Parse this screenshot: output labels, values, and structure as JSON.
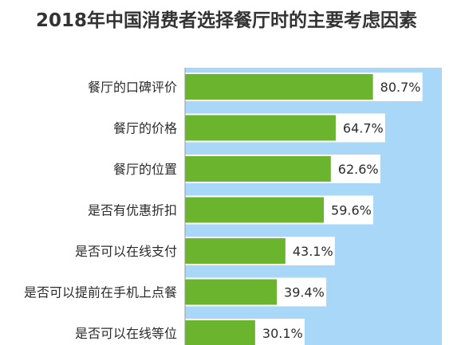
{
  "chart_data": {
    "type": "bar",
    "orientation": "horizontal",
    "title": "2018年中国消费者选择餐厅时的主要考虑因素",
    "categories": [
      "餐厅的口碑评价",
      "餐厅的价格",
      "餐厅的位置",
      "是否有优惠折扣",
      "是否可以在线支付",
      "是否可以提前在手机上点餐",
      "是否可以在线等位"
    ],
    "values": [
      80.7,
      64.7,
      62.6,
      59.6,
      43.1,
      39.4,
      30.1
    ],
    "value_labels": [
      "80.7%",
      "64.7%",
      "62.6%",
      "59.6%",
      "43.1%",
      "39.4%",
      "30.1%"
    ],
    "unit": "%",
    "xlim": [
      0,
      100
    ],
    "grid": false,
    "legend": "none",
    "colors": {
      "bar": "#6ab42e",
      "panel": "#a9d7f7",
      "text": "#2b2b2b",
      "title": "#333333"
    }
  }
}
